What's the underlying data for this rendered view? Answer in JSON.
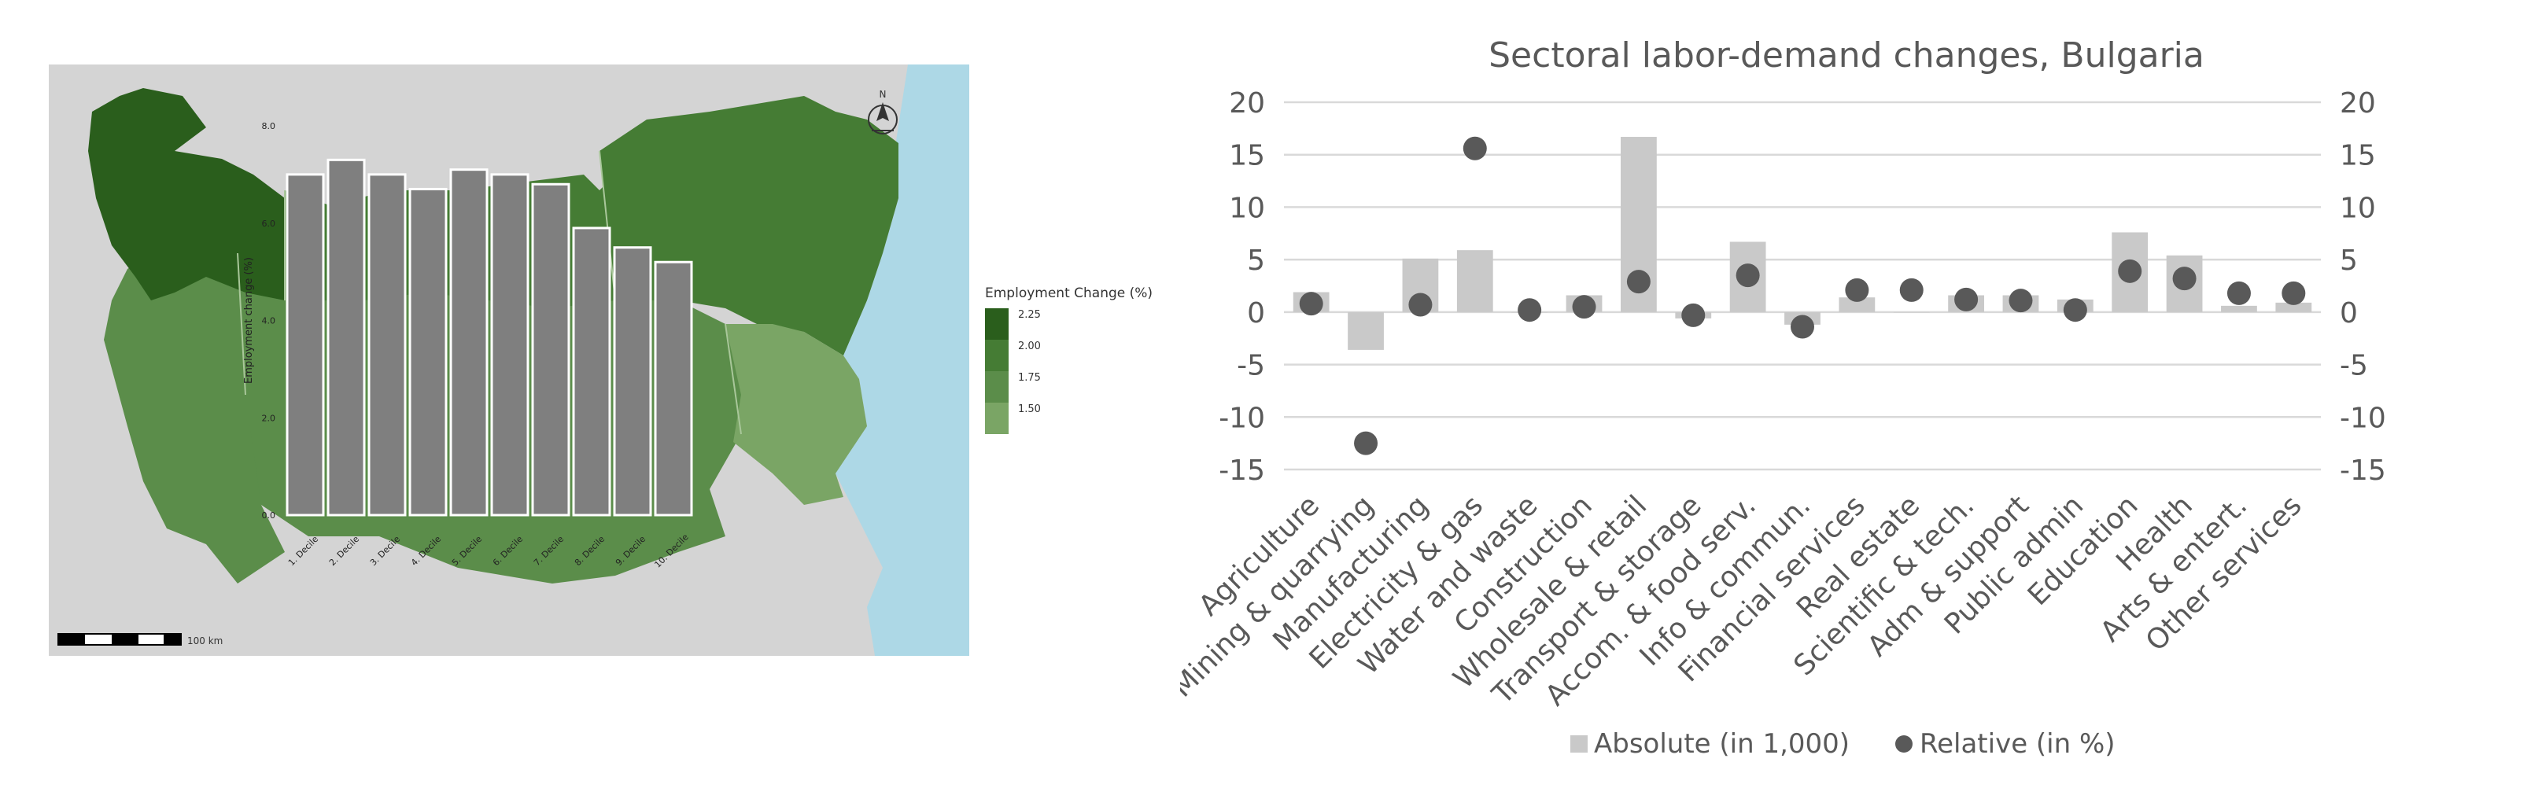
{
  "map": {
    "inner_chart": {
      "ylabel": "Employment change (%)",
      "y_ticks": [
        "0.0",
        "2.0",
        "4.0",
        "6.0",
        "8.0"
      ],
      "ylim": [
        0,
        8
      ],
      "categories": [
        "1. Decile",
        "2. Decile",
        "3. Decile",
        "4. Decile",
        "5. Decile",
        "6. Decile",
        "7. Decile",
        "8. Decile",
        "9. Decile",
        "10. Decile"
      ],
      "values": [
        7.0,
        7.3,
        7.0,
        6.7,
        7.1,
        7.0,
        6.8,
        5.9,
        5.5,
        5.2
      ]
    },
    "scale_label": "100 km",
    "north_label": "N",
    "legend": {
      "title": "Employment Change (%)",
      "items": [
        "2.25",
        "2.00",
        "1.75",
        "1.50"
      ],
      "colors": [
        "#2a5e1c",
        "#457c34",
        "#5b8d4a",
        "#7aa565"
      ]
    },
    "colors": {
      "water": "#add8e6",
      "land": "#d4d4d4",
      "bar_fill": "#7f7f7f"
    }
  },
  "chart_data": {
    "type": "bar",
    "title": "Sectoral labor-demand changes, Bulgaria",
    "categories": [
      "Agriculture",
      "Mining & quarrying",
      "Manufacturing",
      "Electricity & gas",
      "Water and waste",
      "Construction",
      "Wholesale & retail",
      "Transport & storage",
      "Accom. & food serv.",
      "Info & commun.",
      "Financial services",
      "Real estate",
      "Scientific & tech.",
      "Adm & support",
      "Public admin",
      "Education",
      "Health",
      "Arts & entert.",
      "Other services"
    ],
    "series": [
      {
        "name": "Absolute (in 1,000)",
        "type": "bar",
        "axis": "left",
        "color": "#c9c9c9",
        "values": [
          1.9,
          -3.6,
          5.1,
          5.9,
          0.0,
          1.6,
          16.7,
          -0.6,
          6.7,
          -1.2,
          1.4,
          0.0,
          1.6,
          1.6,
          1.2,
          7.6,
          5.4,
          0.6,
          0.9
        ]
      },
      {
        "name": "Relative (in %)",
        "type": "scatter",
        "axis": "right",
        "color": "#595959",
        "values": [
          0.8,
          -12.5,
          0.7,
          15.6,
          0.2,
          0.5,
          2.9,
          -0.3,
          3.5,
          -1.4,
          2.1,
          2.1,
          1.2,
          1.1,
          0.2,
          3.9,
          3.2,
          1.8,
          1.8
        ]
      }
    ],
    "y_ticks": [
      "20",
      "15",
      "10",
      "5",
      "0",
      "-5",
      "-10",
      "-15"
    ],
    "y_tick_values": [
      20,
      15,
      10,
      5,
      0,
      -5,
      -10,
      -15
    ],
    "ylim": [
      -15,
      20
    ],
    "y2_ticks": [
      "20",
      "15",
      "10",
      "5",
      "0",
      "-5",
      "-10",
      "-15"
    ],
    "y2lim": [
      -15,
      20
    ],
    "grid": true,
    "legend_position": "bottom",
    "legend": [
      "Absolute (in 1,000)",
      "Relative (in %)"
    ],
    "colors": {
      "grid": "#d9d9d9",
      "text": "#595959"
    }
  }
}
